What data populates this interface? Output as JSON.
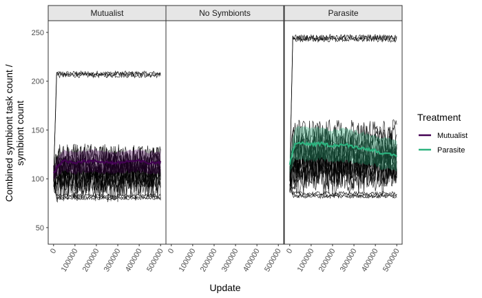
{
  "chart_data": {
    "type": "line",
    "xlabel": "Update",
    "ylabel_lines": [
      "Combined symbiont task count /",
      "symbiont count"
    ],
    "ylim": [
      33,
      262
    ],
    "xlim": [
      -25000,
      525000
    ],
    "y_ticks": [
      50,
      100,
      150,
      200,
      250
    ],
    "x_ticks": [
      0,
      100000,
      200000,
      300000,
      400000,
      500000
    ],
    "x_tick_labels": [
      "0",
      "100000",
      "200000",
      "300000",
      "400000",
      "500000"
    ],
    "legend": {
      "title": "Treatment",
      "placement": "right",
      "entries": [
        {
          "label": "Mutualist",
          "color": "#440154"
        },
        {
          "label": "Parasite",
          "color": "#2db37f"
        }
      ]
    },
    "replicate_color": "#000000",
    "panels": [
      {
        "label": "Mutualist",
        "replicate_levels": [
          208,
          207,
          206,
          83,
          81,
          80,
          95,
          100,
          105,
          110,
          115,
          120,
          98,
          112,
          118,
          104,
          90,
          122,
          108,
          102
        ],
        "replicate_noise": [
          2.5,
          2.5,
          2.5,
          1.5,
          1.5,
          1.5,
          14,
          14,
          14,
          14,
          14,
          14,
          14,
          14,
          14,
          14,
          14,
          14,
          14,
          14
        ],
        "series": [
          {
            "name": "Mutualist",
            "color": "#440154",
            "band_color": "#440154",
            "x": [
              0,
              25000,
              50000,
              100000,
              150000,
              200000,
              250000,
              300000,
              350000,
              400000,
              450000,
              500000
            ],
            "mean": [
              105,
              115,
              118,
              117,
              118,
              118,
              117,
              116,
              118,
              118,
              116,
              117
            ],
            "band_half_width": [
              6,
              10,
              11,
              11,
              11,
              11,
              11,
              11,
              11,
              11,
              11,
              11
            ]
          }
        ]
      },
      {
        "label": "No Symbionts",
        "replicate_levels": [],
        "replicate_noise": [],
        "series": []
      },
      {
        "label": "Parasite",
        "replicate_levels": [
          245,
          244,
          243,
          85,
          83,
          82,
          100,
          105,
          110,
          115,
          118,
          120,
          125,
          128,
          135,
          140,
          112,
          108,
          130,
          145
        ],
        "replicate_noise": [
          3,
          3,
          3,
          2,
          2,
          2,
          16,
          16,
          16,
          16,
          16,
          16,
          16,
          16,
          16,
          16,
          16,
          16,
          16,
          16
        ],
        "series": [
          {
            "name": "Parasite",
            "color": "#2db37f",
            "band_color": "#2db37f",
            "x": [
              0,
              25000,
              50000,
              100000,
              150000,
              200000,
              250000,
              300000,
              350000,
              400000,
              450000,
              500000
            ],
            "mean": [
              115,
              136,
              137,
              135,
              136,
              134,
              135,
              133,
              131,
              129,
              125,
              124
            ],
            "band_half_width": [
              10,
              16,
              17,
              17,
              16,
              16,
              17,
              16,
              16,
              15,
              16,
              16
            ]
          }
        ]
      }
    ]
  }
}
